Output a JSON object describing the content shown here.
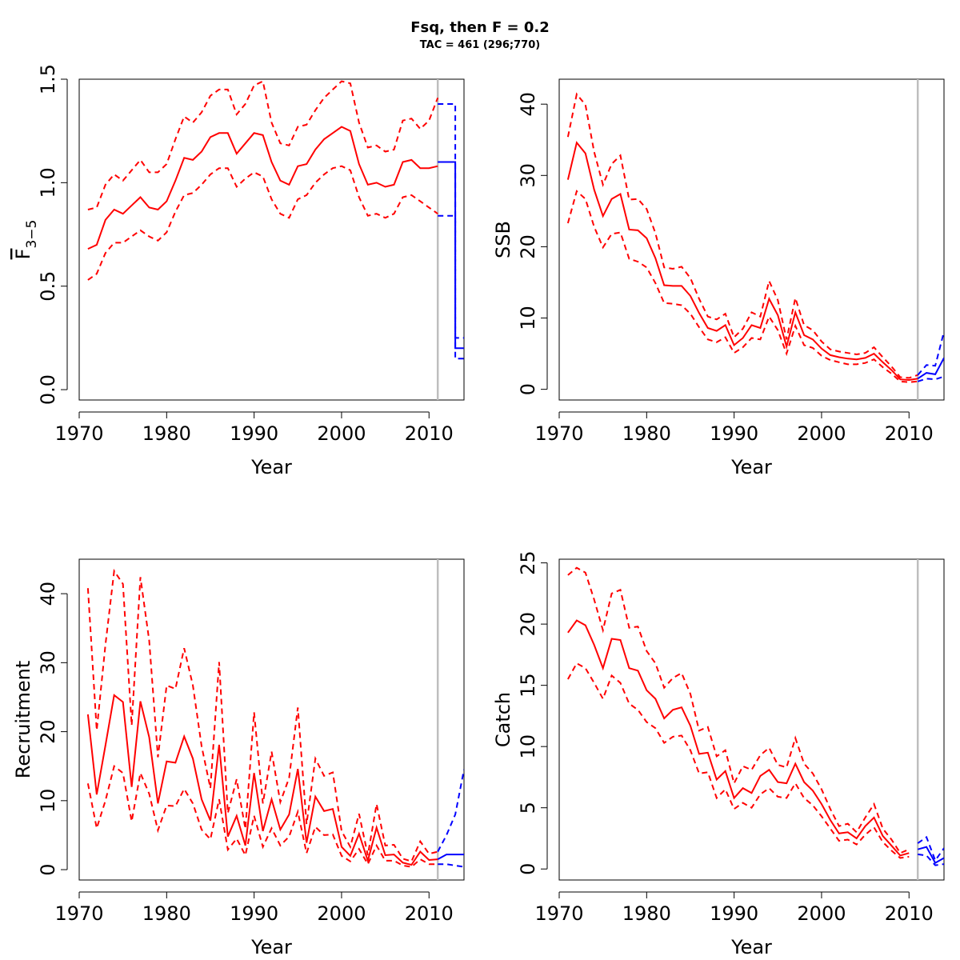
{
  "title": "Fsq, then F = 0.2",
  "subtitle": "TAC = 461 (296;770)",
  "colors": {
    "historic": "#ff0000",
    "forecast": "#0000ff",
    "reference_line": "#bebebe"
  },
  "chart_data": [
    {
      "id": "fbar",
      "type": "line",
      "xlabel": "Year",
      "ylabel": "F̄3−5",
      "ylabel_main": "F",
      "ylabel_sub": "3−5",
      "xlim": [
        1970,
        2014
      ],
      "ylim": [
        -0.05,
        1.5
      ],
      "xticks": [
        1970,
        1980,
        1990,
        2000,
        2010
      ],
      "yticks": [
        "0.0",
        "0.5",
        "1.0",
        "1.5"
      ],
      "vline_x": 2011,
      "historic": {
        "x": [
          1971,
          1972,
          1973,
          1974,
          1975,
          1976,
          1977,
          1978,
          1979,
          1980,
          1981,
          1982,
          1983,
          1984,
          1985,
          1986,
          1987,
          1988,
          1989,
          1990,
          1991,
          1992,
          1993,
          1994,
          1995,
          1996,
          1997,
          1998,
          1999,
          2000,
          2001,
          2002,
          2003,
          2004,
          2005,
          2006,
          2007,
          2008,
          2009,
          2010,
          2011
        ],
        "est": [
          0.68,
          0.7,
          0.82,
          0.87,
          0.85,
          0.89,
          0.93,
          0.88,
          0.87,
          0.91,
          1.01,
          1.12,
          1.11,
          1.15,
          1.22,
          1.24,
          1.24,
          1.14,
          1.19,
          1.24,
          1.23,
          1.1,
          1.01,
          0.99,
          1.08,
          1.09,
          1.16,
          1.21,
          1.24,
          1.27,
          1.25,
          1.09,
          0.99,
          1.0,
          0.98,
          0.99,
          1.1,
          1.11,
          1.07,
          1.07,
          1.08
        ],
        "lower": [
          0.53,
          0.56,
          0.66,
          0.71,
          0.71,
          0.74,
          0.77,
          0.74,
          0.72,
          0.76,
          0.86,
          0.94,
          0.95,
          0.99,
          1.04,
          1.07,
          1.07,
          0.98,
          1.02,
          1.05,
          1.03,
          0.92,
          0.85,
          0.83,
          0.92,
          0.94,
          1.0,
          1.04,
          1.07,
          1.08,
          1.06,
          0.93,
          0.84,
          0.85,
          0.83,
          0.85,
          0.93,
          0.94,
          0.91,
          0.88,
          0.85
        ],
        "upper": [
          0.87,
          0.88,
          0.99,
          1.04,
          1.01,
          1.06,
          1.11,
          1.05,
          1.05,
          1.09,
          1.21,
          1.32,
          1.29,
          1.34,
          1.42,
          1.45,
          1.45,
          1.33,
          1.38,
          1.47,
          1.49,
          1.29,
          1.19,
          1.18,
          1.27,
          1.28,
          1.35,
          1.41,
          1.45,
          1.49,
          1.48,
          1.29,
          1.17,
          1.18,
          1.15,
          1.16,
          1.3,
          1.31,
          1.26,
          1.3,
          1.41
        ]
      },
      "forecast": {
        "style": "step",
        "x": [
          2011,
          2012,
          2013,
          2014
        ],
        "est": [
          1.1,
          1.1,
          0.2,
          0.2
        ],
        "lower": [
          0.84,
          0.84,
          0.15,
          0.15
        ],
        "upper": [
          1.38,
          1.38,
          0.25,
          0.25
        ]
      }
    },
    {
      "id": "ssb",
      "type": "line",
      "xlabel": "Year",
      "ylabel": "SSB",
      "xlim": [
        1970,
        2014
      ],
      "ylim": [
        -1.5,
        43.5
      ],
      "xticks": [
        1970,
        1980,
        1990,
        2000,
        2010
      ],
      "yticks": [
        "0",
        "10",
        "20",
        "30",
        "40"
      ],
      "vline_x": 2011,
      "historic": {
        "x": [
          1971,
          1972,
          1973,
          1974,
          1975,
          1976,
          1977,
          1978,
          1979,
          1980,
          1981,
          1982,
          1983,
          1984,
          1985,
          1986,
          1987,
          1988,
          1989,
          1990,
          1991,
          1992,
          1993,
          1994,
          1995,
          1996,
          1997,
          1998,
          1999,
          2000,
          2001,
          2002,
          2003,
          2004,
          2005,
          2006,
          2007,
          2008,
          2009,
          2010,
          2011
        ],
        "est": [
          29.4,
          34.6,
          33.1,
          28.0,
          24.3,
          26.7,
          27.4,
          22.4,
          22.3,
          21.2,
          18.4,
          14.6,
          14.5,
          14.5,
          13.1,
          10.7,
          8.6,
          8.2,
          9.0,
          6.2,
          7.2,
          9.0,
          8.6,
          12.7,
          10.4,
          6.0,
          10.8,
          7.6,
          7.0,
          5.7,
          4.8,
          4.5,
          4.3,
          4.2,
          4.4,
          5.0,
          3.8,
          2.7,
          1.4,
          1.3,
          1.5
        ],
        "lower": [
          23.3,
          27.8,
          26.7,
          22.8,
          19.9,
          21.8,
          22.0,
          18.3,
          17.9,
          17.1,
          14.9,
          12.1,
          12.0,
          11.8,
          10.6,
          8.7,
          7.0,
          6.6,
          7.3,
          5.1,
          5.9,
          7.2,
          7.0,
          10.2,
          8.3,
          5.0,
          8.9,
          6.2,
          5.8,
          4.7,
          4.1,
          3.8,
          3.5,
          3.5,
          3.7,
          4.2,
          3.1,
          2.2,
          1.1,
          1.0,
          1.1
        ],
        "upper": [
          35.4,
          41.4,
          39.9,
          33.3,
          28.7,
          31.6,
          32.8,
          26.6,
          26.7,
          25.3,
          21.9,
          17.1,
          16.9,
          17.2,
          15.6,
          12.7,
          10.2,
          9.8,
          10.6,
          7.3,
          8.5,
          10.8,
          10.2,
          15.2,
          12.5,
          7.0,
          12.8,
          9.0,
          8.3,
          6.7,
          5.6,
          5.3,
          5.1,
          4.9,
          5.1,
          5.9,
          4.5,
          3.2,
          1.7,
          1.6,
          2.0
        ]
      },
      "forecast": {
        "style": "line",
        "x": [
          2011,
          2012,
          2013,
          2014
        ],
        "est": [
          1.5,
          2.3,
          2.1,
          4.4
        ],
        "lower": [
          1.1,
          1.5,
          1.4,
          1.8
        ],
        "upper": [
          2.0,
          3.4,
          3.3,
          8.1
        ]
      }
    },
    {
      "id": "recruitment",
      "type": "line",
      "xlabel": "Year",
      "ylabel": "Recruitment",
      "xlim": [
        1970,
        2014
      ],
      "ylim": [
        -1.5,
        45
      ],
      "xticks": [
        1970,
        1980,
        1990,
        2000,
        2010
      ],
      "yticks": [
        "0",
        "10",
        "20",
        "30",
        "40"
      ],
      "vline_x": 2011,
      "historic": {
        "x": [
          1971,
          1972,
          1973,
          1974,
          1975,
          1976,
          1977,
          1978,
          1979,
          1980,
          1981,
          1982,
          1983,
          1984,
          1985,
          1986,
          1987,
          1988,
          1989,
          1990,
          1991,
          1992,
          1993,
          1994,
          1995,
          1996,
          1997,
          1998,
          1999,
          2000,
          2001,
          2002,
          2003,
          2004,
          2005,
          2006,
          2007,
          2008,
          2009,
          2010,
          2011
        ],
        "est": [
          22.5,
          10.9,
          18.0,
          25.3,
          24.3,
          12.0,
          24.4,
          19.2,
          9.6,
          15.7,
          15.5,
          19.3,
          16.1,
          10.2,
          7.1,
          18.1,
          4.8,
          7.8,
          3.5,
          14.0,
          5.6,
          10.2,
          5.8,
          8.0,
          14.6,
          3.9,
          10.6,
          8.5,
          8.8,
          3.3,
          2.0,
          5.2,
          1.3,
          6.1,
          2.1,
          2.2,
          1.0,
          0.7,
          2.6,
          1.4,
          1.5
        ],
        "lower": [
          12.5,
          6.0,
          10.0,
          15.0,
          14.0,
          7.0,
          14.0,
          11.0,
          5.7,
          9.3,
          9.2,
          11.7,
          9.6,
          5.8,
          4.4,
          10.2,
          2.9,
          4.5,
          2.1,
          7.8,
          3.3,
          6.0,
          3.5,
          4.8,
          8.4,
          2.4,
          6.2,
          5.0,
          5.1,
          2.0,
          1.2,
          3.0,
          0.8,
          3.5,
          1.3,
          1.3,
          0.6,
          0.4,
          1.5,
          0.8,
          0.8
        ],
        "upper": [
          40.8,
          20.2,
          32.6,
          43.3,
          41.4,
          20.9,
          42.4,
          33.2,
          16.3,
          26.7,
          26.2,
          32.1,
          26.7,
          17.9,
          11.8,
          30.1,
          8.2,
          13.1,
          5.9,
          22.8,
          9.6,
          17.1,
          9.8,
          13.3,
          23.5,
          6.6,
          16.1,
          13.6,
          14.1,
          5.6,
          3.3,
          8.1,
          2.1,
          9.5,
          3.5,
          3.6,
          1.6,
          1.2,
          4.1,
          2.3,
          2.6
        ]
      },
      "forecast": {
        "style": "line",
        "x": [
          2011,
          2012,
          2013,
          2014
        ],
        "est": [
          1.5,
          2.2,
          2.2,
          2.2
        ],
        "lower": [
          0.8,
          0.8,
          0.6,
          0.4
        ],
        "upper": [
          2.6,
          5.0,
          8.0,
          14.5
        ]
      }
    },
    {
      "id": "catch",
      "type": "line",
      "xlabel": "Year",
      "ylabel": "Catch",
      "xlim": [
        1970,
        2014
      ],
      "ylim": [
        -0.9,
        25.3
      ],
      "xticks": [
        1970,
        1980,
        1990,
        2000,
        2010
      ],
      "yticks": [
        "0",
        "5",
        "10",
        "15",
        "20",
        "25"
      ],
      "vline_x": 2011,
      "historic": {
        "x": [
          1971,
          1972,
          1973,
          1974,
          1975,
          1976,
          1977,
          1978,
          1979,
          1980,
          1981,
          1982,
          1983,
          1984,
          1985,
          1986,
          1987,
          1988,
          1989,
          1990,
          1991,
          1992,
          1993,
          1994,
          1995,
          1996,
          1997,
          1998,
          1999,
          2000,
          2001,
          2002,
          2003,
          2004,
          2005,
          2006,
          2007,
          2008,
          2009,
          2010
        ],
        "est": [
          19.3,
          20.3,
          19.9,
          18.3,
          16.4,
          18.8,
          18.7,
          16.4,
          16.2,
          14.6,
          13.9,
          12.3,
          13.0,
          13.2,
          11.7,
          9.4,
          9.5,
          7.3,
          8.0,
          5.8,
          6.6,
          6.2,
          7.6,
          8.1,
          7.1,
          7.0,
          8.6,
          7.1,
          6.4,
          5.3,
          4.0,
          2.9,
          3.0,
          2.5,
          3.5,
          4.2,
          2.7,
          1.9,
          1.1,
          1.3
        ],
        "lower": [
          15.5,
          16.8,
          16.4,
          15.2,
          13.9,
          15.8,
          15.2,
          13.5,
          13.0,
          12.0,
          11.5,
          10.3,
          10.8,
          10.9,
          9.7,
          7.8,
          7.9,
          5.8,
          6.5,
          4.9,
          5.4,
          5.0,
          6.1,
          6.6,
          5.9,
          5.8,
          7.0,
          5.8,
          5.2,
          4.3,
          3.3,
          2.3,
          2.4,
          2.0,
          2.8,
          3.4,
          2.2,
          1.5,
          0.9,
          1.0
        ],
        "upper": [
          24.0,
          24.6,
          24.2,
          22.0,
          19.5,
          22.5,
          22.8,
          19.7,
          19.8,
          17.8,
          16.8,
          14.8,
          15.6,
          16.0,
          14.3,
          11.3,
          11.6,
          9.2,
          9.7,
          7.0,
          8.4,
          8.1,
          9.3,
          9.9,
          8.5,
          8.3,
          10.7,
          8.6,
          7.8,
          6.5,
          4.9,
          3.5,
          3.7,
          3.0,
          4.2,
          5.3,
          3.3,
          2.4,
          1.3,
          1.6
        ]
      },
      "forecast": {
        "style": "line",
        "x": [
          2011,
          2012,
          2013,
          2014
        ],
        "est": [
          1.6,
          1.8,
          0.5,
          0.9
        ],
        "lower": [
          1.2,
          1.1,
          0.3,
          0.4
        ],
        "upper": [
          2.1,
          2.6,
          0.7,
          1.7
        ]
      }
    }
  ]
}
